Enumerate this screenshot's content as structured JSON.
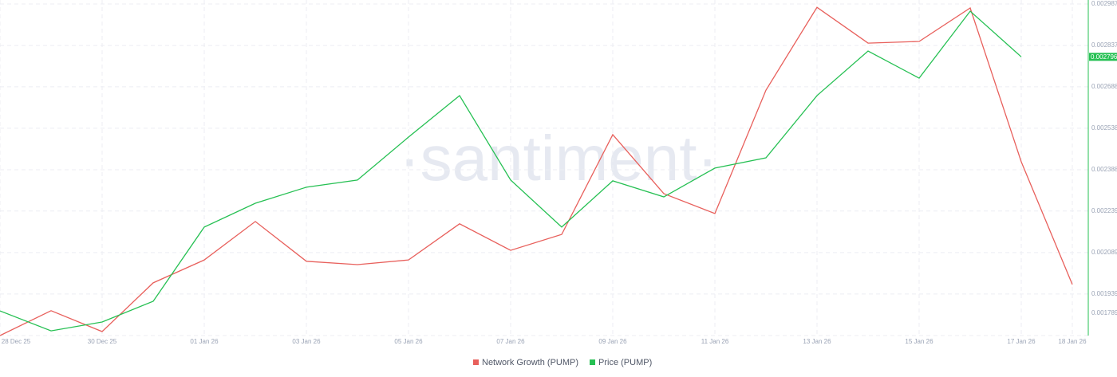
{
  "chart_data": {
    "type": "line",
    "watermark": "·santiment·",
    "categories": [
      "28 Dec 25",
      null,
      "30 Dec 25",
      null,
      "01 Jan 26",
      null,
      "03 Jan 26",
      null,
      "05 Jan 26",
      null,
      "07 Jan 26",
      null,
      "09 Jan 26",
      null,
      "11 Jan 26",
      null,
      "13 Jan 26",
      null,
      "15 Jan 26",
      null,
      "17 Jan 26",
      "18 Jan 26"
    ],
    "series": [
      {
        "name": "Network Growth (PUMP)",
        "color": "#e8605c",
        "axis": "y",
        "values": [
          0,
          7.5,
          1.2,
          15.9,
          22.8,
          34.4,
          22.4,
          21.4,
          22.8,
          33.7,
          25.7,
          30.5,
          60.6,
          42.8,
          36.8,
          74,
          99,
          88.2,
          88.7,
          98.8,
          52.4,
          15.4
        ]
      },
      {
        "name": "Price (PUMP)",
        "color": "#26c053",
        "axis": "y2",
        "values": [
          0.001878,
          0.001806,
          0.001838,
          0.001913,
          0.002181,
          0.002267,
          0.002325,
          0.002351,
          0.002506,
          0.002656,
          0.002351,
          0.002181,
          0.002348,
          0.00229,
          0.002394,
          0.002431,
          0.002656,
          0.002817,
          0.002719,
          0.002961,
          0.002796,
          null
        ]
      }
    ],
    "ylim": [
      0,
      100
    ],
    "y2lim": [
      0.001789,
      0.002987
    ],
    "y2ticks": [
      0.001789,
      0.001939,
      0.002089,
      0.002239,
      0.002388,
      0.002538,
      0.002688,
      0.002837,
      0.002987
    ],
    "grid": true,
    "legend": "bottom"
  }
}
